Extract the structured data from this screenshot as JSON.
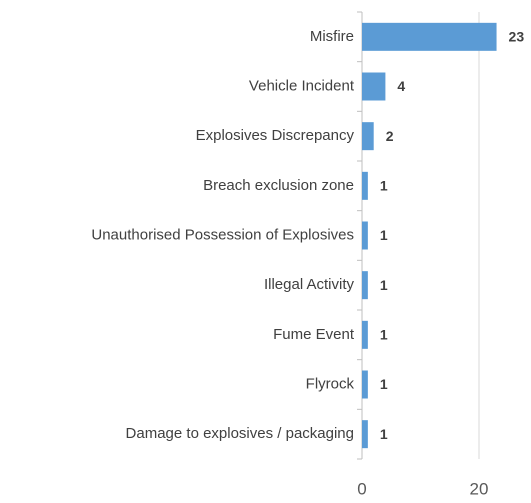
{
  "chart_data": {
    "type": "bar",
    "orientation": "horizontal",
    "categories": [
      "Misfire",
      "Vehicle Incident",
      "Explosives Discrepancy",
      "Breach exclusion zone",
      "Unauthorised Possession of Explosives",
      "Illegal Activity",
      "Fume Event",
      "Flyrock",
      "Damage to explosives / packaging"
    ],
    "values": [
      23,
      4,
      2,
      1,
      1,
      1,
      1,
      1,
      1
    ],
    "color": "#5b9bd5",
    "xlim": [
      0,
      25
    ],
    "xticks": [
      0,
      20
    ],
    "grid": true
  }
}
